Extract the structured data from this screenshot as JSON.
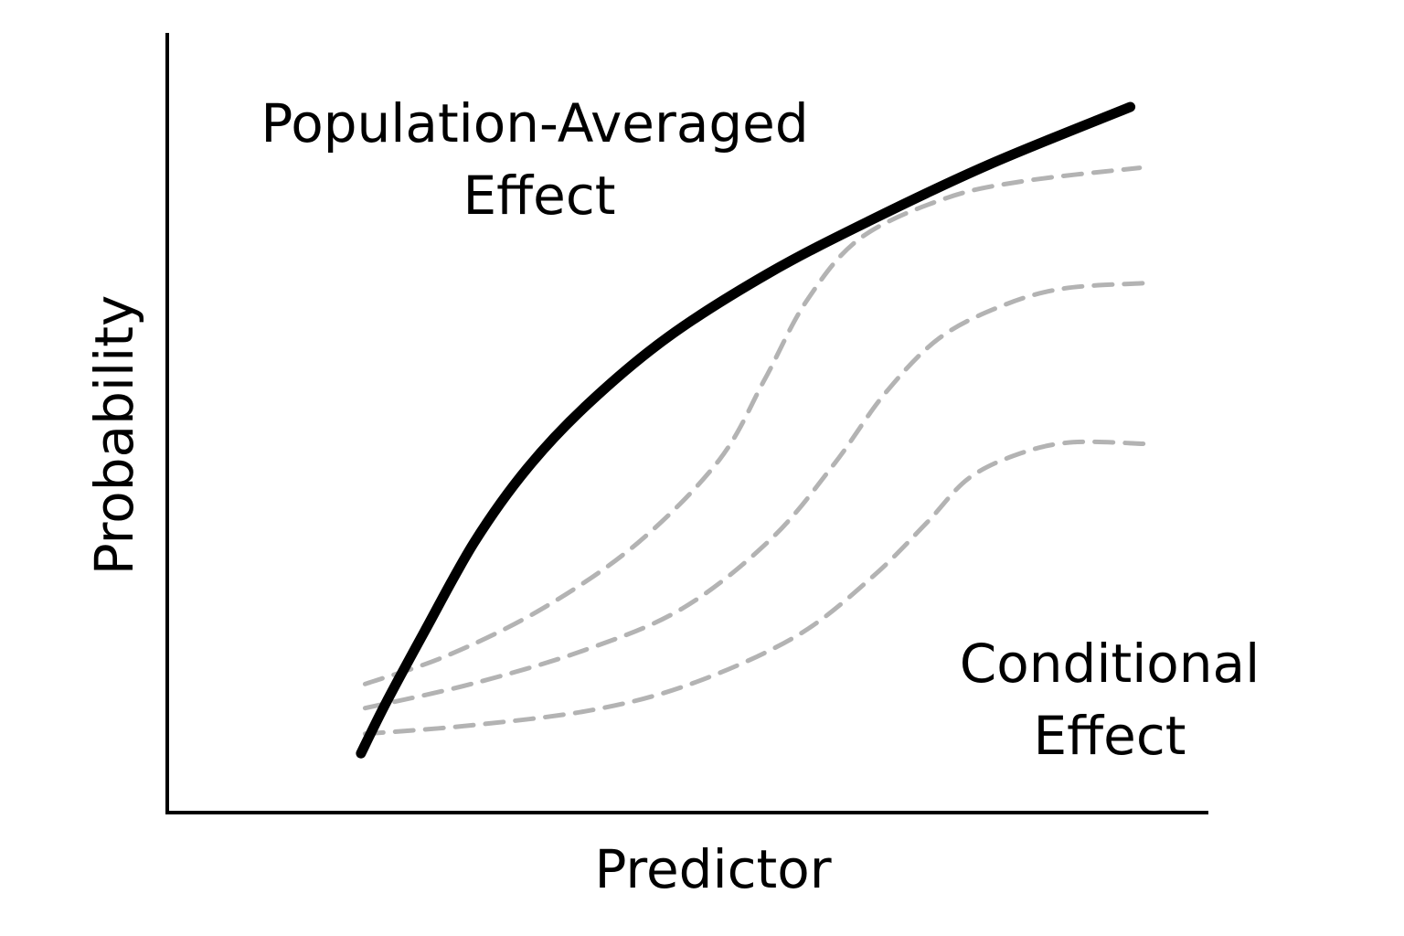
{
  "chart_data": {
    "type": "line",
    "xlabel": "Predictor",
    "ylabel": "Probability",
    "xlim": [
      0,
      1
    ],
    "ylim": [
      0,
      1
    ],
    "grid": false,
    "ticks": false,
    "annotations": [
      {
        "id": "population",
        "lines": [
          "Population-Averaged",
          "Effect"
        ]
      },
      {
        "id": "conditional",
        "lines": [
          "Conditional",
          "Effect"
        ]
      }
    ],
    "series": [
      {
        "id": "population-averaged",
        "style": "solid",
        "color": "#000000",
        "points": [
          [
            0.186,
            0.076
          ],
          [
            0.211,
            0.143
          ],
          [
            0.247,
            0.232
          ],
          [
            0.295,
            0.347
          ],
          [
            0.346,
            0.442
          ],
          [
            0.404,
            0.524
          ],
          [
            0.481,
            0.61
          ],
          [
            0.578,
            0.692
          ],
          [
            0.676,
            0.76
          ],
          [
            0.789,
            0.831
          ],
          [
            0.925,
            0.905
          ]
        ]
      },
      {
        "id": "conditional-upper",
        "style": "dashed",
        "color": "#b3b3b3",
        "points": [
          [
            0.19,
            0.165
          ],
          [
            0.27,
            0.202
          ],
          [
            0.362,
            0.263
          ],
          [
            0.452,
            0.346
          ],
          [
            0.53,
            0.452
          ],
          [
            0.574,
            0.556
          ],
          [
            0.614,
            0.656
          ],
          [
            0.666,
            0.737
          ],
          [
            0.748,
            0.788
          ],
          [
            0.823,
            0.81
          ],
          [
            0.934,
            0.827
          ]
        ]
      },
      {
        "id": "conditional-middle",
        "style": "dashed",
        "color": "#b3b3b3",
        "points": [
          [
            0.19,
            0.134
          ],
          [
            0.292,
            0.165
          ],
          [
            0.4,
            0.208
          ],
          [
            0.495,
            0.262
          ],
          [
            0.58,
            0.351
          ],
          [
            0.641,
            0.448
          ],
          [
            0.689,
            0.537
          ],
          [
            0.741,
            0.608
          ],
          [
            0.8,
            0.649
          ],
          [
            0.86,
            0.672
          ],
          [
            0.938,
            0.679
          ]
        ]
      },
      {
        "id": "conditional-lower",
        "style": "dashed",
        "color": "#b3b3b3",
        "points": [
          [
            0.19,
            0.101
          ],
          [
            0.292,
            0.112
          ],
          [
            0.41,
            0.132
          ],
          [
            0.505,
            0.166
          ],
          [
            0.605,
            0.227
          ],
          [
            0.677,
            0.302
          ],
          [
            0.729,
            0.371
          ],
          [
            0.77,
            0.429
          ],
          [
            0.82,
            0.461
          ],
          [
            0.87,
            0.475
          ],
          [
            0.938,
            0.473
          ]
        ]
      }
    ]
  }
}
